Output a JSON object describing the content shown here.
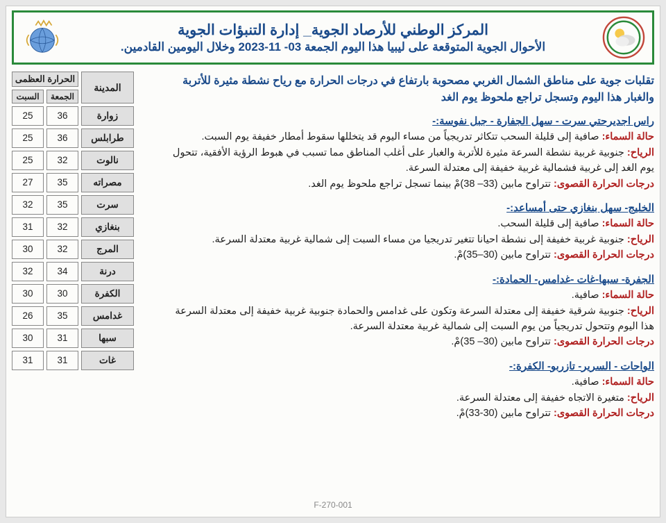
{
  "header": {
    "title_line1": "المركز الوطني للأرصاد الجوية_ إدارة التنبؤات الجوية",
    "title_line2": "الأحوال الجوية المتوقعة على ليبيا هذا اليوم الجمعة 03- 11-2023 وخلال اليومين القادمين.",
    "border_color": "#2a8a3a",
    "title_color": "#1a4a8a"
  },
  "summary": "تقلبات جوية على مناطق الشمال الغربي مصحوبة بارتفاع في درجات الحرارة مع رياح نشطة مثيرة للأتربة والغبار هذا اليوم وتسجل تراجع ملحوظ يوم الغد",
  "labels": {
    "sky": "حالة السماء:",
    "wind": "الرياح:",
    "max_temp": "درجات الحرارة القصوى:"
  },
  "regions": [
    {
      "title": "راس اجديرحتي سرت - سهل الجفارة - جبل نفوسة:-",
      "sky": "صافية إلى قليلة السحب تتكاثر تدريجياً من مساء اليوم قد يتخللها سقوط أمطار خفيفة يوم السبت.",
      "wind": "جنوبية غربية نشطة السرعة مثيرة للأتربة والغبار على أغلب المناطق مما تسبب في هبوط الرؤية الأفقية، تتحول يوم الغد إلى غربية فشمالية غربية خفيفة إلى معتدلة السرعة.",
      "max": "تتراوح مابين (33– 38)مْ بينما تسجل تراجع ملحوظ يوم الغد."
    },
    {
      "title": "الخليج- سهل بنغازي حتى أمساعد:-",
      "sky": "صافية إلى قليلة السحب.",
      "wind": "جنوبية غربية خفيفة إلى نشطة احيانا تتغير تدريجيا  من مساء السبت إلى شمالية غربية معتدلة السرعة.",
      "max": "تتراوح مابين (30–35)مْ."
    },
    {
      "title": "الجفرة- سبها-غات -غدامس- الحمادة:-",
      "sky": "صافية.",
      "wind": "جنوبية شرقية خفيفة إلى معتدلة السرعة وتكون على غدامس والحمادة جنوبية غربية خفيفة إلى معتدلة السرعة هذا اليوم وتتحول تدريجياً من يوم السبت إلى شمالية غربية معتدلة السرعة.",
      "max": "تتراوح مابين (30– 35)مْ."
    },
    {
      "title": "الواحات - السرير- تازربو- الكفرة:-",
      "sky": "صافية.",
      "wind": "متغيرة الاتجاه خفيفة إلى معتدلة السرعة.",
      "max": "تتراوح مابين (30-33)مْ."
    }
  ],
  "temp_table": {
    "header_max": "الحرارة العظمى",
    "header_city": "المدينة",
    "day1": "الجمعة",
    "day2": "السبت",
    "header_bg": "#e0e0e0",
    "border_color": "#888888",
    "rows": [
      {
        "city": "زوارة",
        "d1": "36",
        "d2": "25"
      },
      {
        "city": "طرابلس",
        "d1": "36",
        "d2": "25"
      },
      {
        "city": "نالوت",
        "d1": "32",
        "d2": "25"
      },
      {
        "city": "مصراته",
        "d1": "35",
        "d2": "27"
      },
      {
        "city": "سرت",
        "d1": "35",
        "d2": "32"
      },
      {
        "city": "بنغازي",
        "d1": "32",
        "d2": "31"
      },
      {
        "city": "المرج",
        "d1": "32",
        "d2": "30"
      },
      {
        "city": "درنة",
        "d1": "34",
        "d2": "32"
      },
      {
        "city": "الكفرة",
        "d1": "30",
        "d2": "30"
      },
      {
        "city": "غدامس",
        "d1": "35",
        "d2": "26"
      },
      {
        "city": "سبها",
        "d1": "31",
        "d2": "30"
      },
      {
        "city": "غات",
        "d1": "31",
        "d2": "31"
      }
    ]
  },
  "footer_code": "F-270-001",
  "colors": {
    "page_bg": "#fcfcfa",
    "body_bg": "#e8e8e8",
    "region_title": "#1a4a8a",
    "label_red": "#b02020",
    "text": "#222222"
  }
}
